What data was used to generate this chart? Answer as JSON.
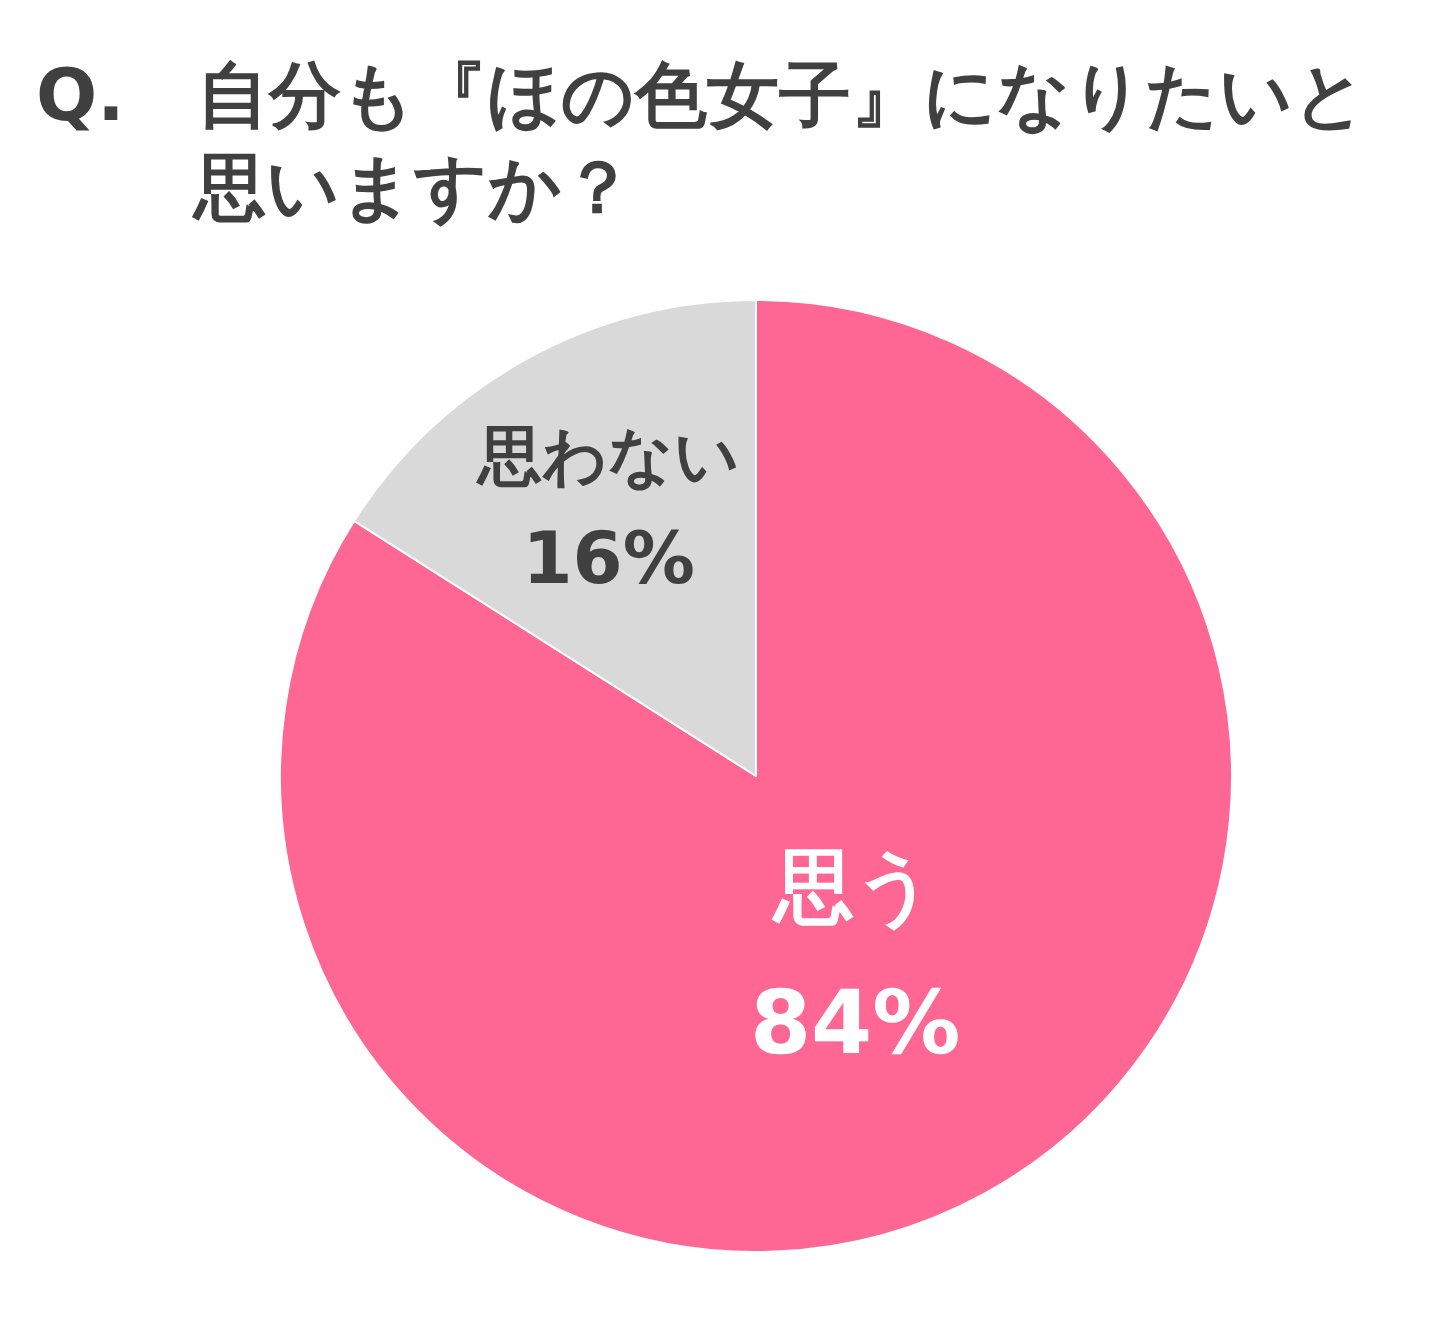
{
  "chart_data": {
    "type": "pie",
    "title": "Q.　自分も『ほの色女子』になりたいと思いますか？",
    "categories": [
      "思う",
      "思わない"
    ],
    "values": [
      84,
      16
    ],
    "colors": [
      "#fe6694",
      "#d9d9d9"
    ],
    "value_labels": [
      "84%",
      "16%"
    ]
  }
}
